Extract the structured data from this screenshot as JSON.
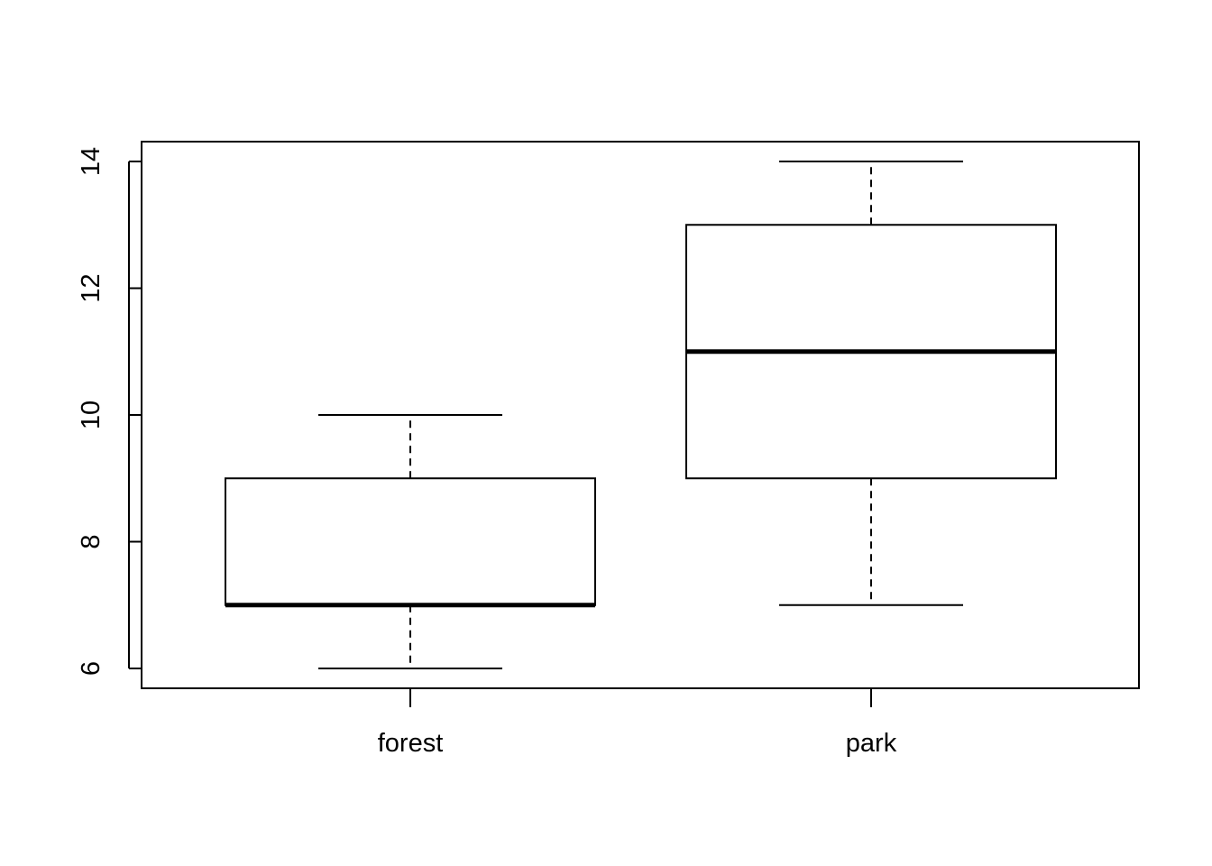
{
  "chart_data": {
    "type": "boxplot",
    "title": "",
    "xlabel": "",
    "ylabel": "",
    "categories": [
      "forest",
      "park"
    ],
    "boxes": [
      {
        "category": "forest",
        "whisker_low": 6,
        "q1": 7,
        "median": 7,
        "q3": 9,
        "whisker_high": 10
      },
      {
        "category": "park",
        "whisker_low": 7,
        "q1": 9,
        "median": 11,
        "q3": 13,
        "whisker_high": 14
      }
    ],
    "y_ticks": [
      "6",
      "8",
      "10",
      "12",
      "14"
    ],
    "ylim": [
      5.68,
      14.32
    ],
    "grid": false,
    "legend": "none",
    "colors": {
      "stroke": "#000000",
      "fill": "#ffffff",
      "background": "#ffffff"
    }
  }
}
